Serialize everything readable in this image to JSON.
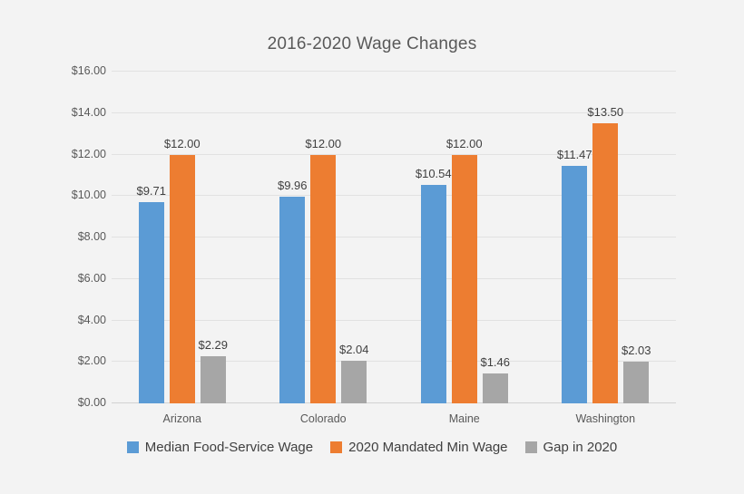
{
  "chart_data": {
    "type": "bar",
    "title": "2016-2020 Wage Changes",
    "categories": [
      "Arizona",
      "Colorado",
      "Maine",
      "Washington"
    ],
    "series": [
      {
        "name": "Median Food-Service Wage",
        "color": "#5B9BD5",
        "values": [
          9.71,
          9.96,
          10.54,
          11.47
        ],
        "data_labels": [
          "$9.71",
          "$9.96",
          "$10.54",
          "$11.47"
        ]
      },
      {
        "name": "2020 Mandated Min Wage",
        "color": "#ED7D31",
        "values": [
          12.0,
          12.0,
          12.0,
          13.5
        ],
        "data_labels": [
          "$12.00",
          "$12.00",
          "$12.00",
          "$13.50"
        ]
      },
      {
        "name": "Gap in 2020",
        "color": "#A6A6A6",
        "values": [
          2.29,
          2.04,
          1.46,
          2.03
        ],
        "data_labels": [
          "$2.29",
          "$2.04",
          "$1.46",
          "$2.03"
        ]
      }
    ],
    "y_axis": {
      "min": 0,
      "max": 16,
      "step": 2,
      "tick_labels": [
        "$0.00",
        "$2.00",
        "$4.00",
        "$6.00",
        "$8.00",
        "$10.00",
        "$12.00",
        "$14.00",
        "$16.00"
      ]
    },
    "grid": true,
    "legend_position": "bottom"
  },
  "colors": {
    "background": "#f3f3f3",
    "gridline": "#e1e1e1",
    "axis_line": "#d2d2d2",
    "title_text": "#595959",
    "axis_text": "#595959",
    "data_label_text": "#404040",
    "legend_text": "#404040"
  }
}
